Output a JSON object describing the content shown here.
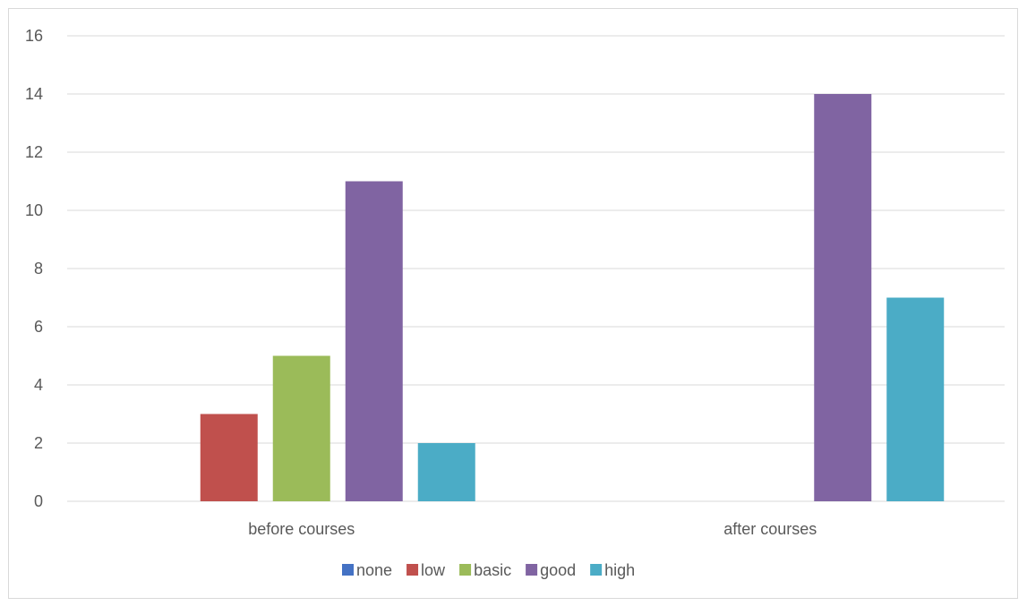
{
  "chart_data": {
    "type": "bar",
    "categories": [
      "before courses",
      "after courses"
    ],
    "series": [
      {
        "name": "none",
        "values": [
          0,
          0
        ],
        "color": "#4472c4"
      },
      {
        "name": "low",
        "values": [
          3,
          0
        ],
        "color": "#c0504d"
      },
      {
        "name": "basic",
        "values": [
          5,
          0
        ],
        "color": "#9bbb59"
      },
      {
        "name": "good",
        "values": [
          11,
          14
        ],
        "color": "#8064a2"
      },
      {
        "name": "high",
        "values": [
          2,
          7
        ],
        "color": "#4bacc6"
      }
    ],
    "ylim": [
      0,
      16
    ],
    "yticks": [
      "0",
      "2",
      "4",
      "6",
      "8",
      "10",
      "12",
      "14",
      "16"
    ],
    "grid": true,
    "legend_position": "bottom"
  }
}
